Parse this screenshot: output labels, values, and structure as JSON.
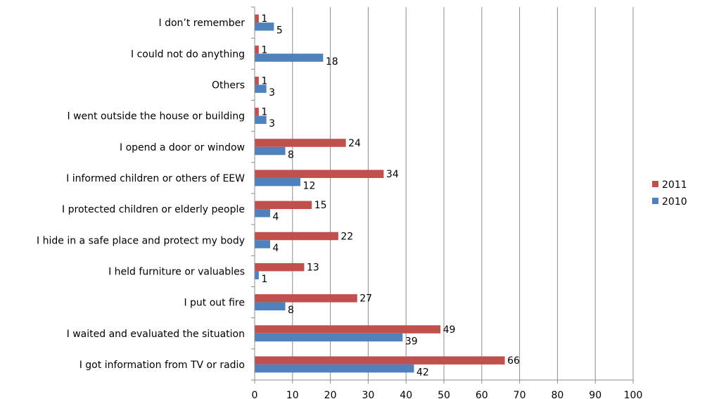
{
  "chart_data": {
    "type": "bar",
    "orientation": "horizontal",
    "categories": [
      "I don’t remember",
      "I could not do anything",
      "Others",
      "I went outside the house or building",
      "I opend a door or window",
      "I informed children or others of EEW",
      "I protected children or elderly people",
      "I hide in a safe place and protect my body",
      "I held furniture or valuables",
      "I put out fire",
      "I waited and evaluated the situation",
      "I got information from TV or radio"
    ],
    "series": [
      {
        "name": "2011",
        "color": "#c0504d",
        "values": [
          1,
          1,
          1,
          1,
          24,
          34,
          15,
          22,
          13,
          27,
          49,
          66
        ]
      },
      {
        "name": "2010",
        "color": "#4f81bd",
        "values": [
          5,
          18,
          3,
          3,
          8,
          12,
          4,
          4,
          1,
          8,
          39,
          42
        ]
      }
    ],
    "xlim": [
      0,
      100
    ],
    "xticks": [
      "0",
      "10",
      "20",
      "30",
      "40",
      "50",
      "60",
      "70",
      "80",
      "90",
      "100"
    ],
    "grid": "vertical",
    "legend": "right"
  }
}
